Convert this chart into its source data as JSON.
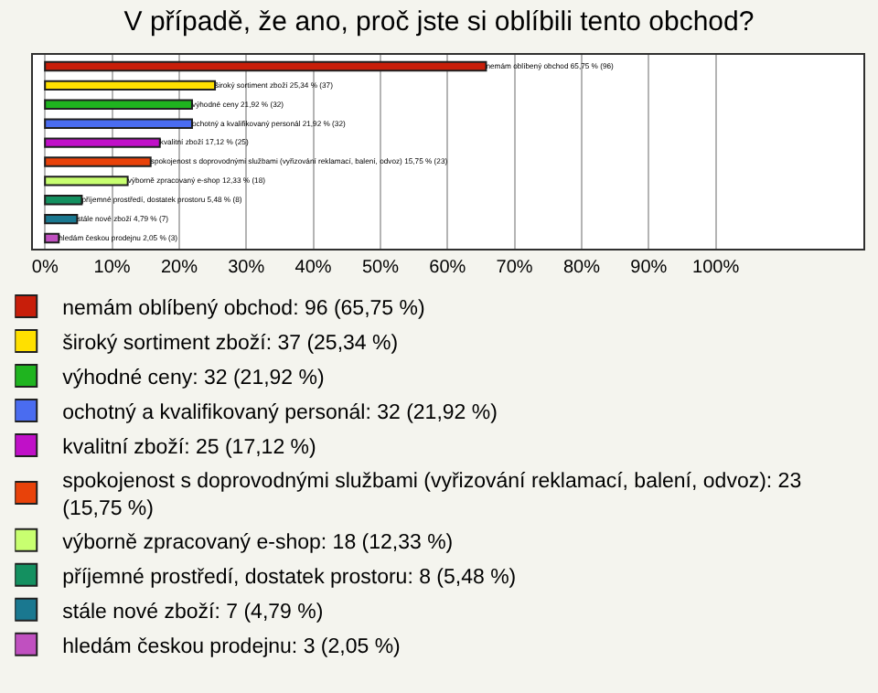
{
  "chart_data": {
    "type": "bar",
    "orientation": "horizontal",
    "title": "V případě, že ano, proč jste si oblíbili tento obchod?",
    "categories": [
      "nemám oblíbený obchod",
      "široký sortiment zboží",
      "výhodné ceny",
      "ochotný a kvalifikovaný personál",
      "kvalitní zboží",
      "spokojenost s doprovodnými službami (vyřizování reklamací, balení, odvoz)",
      "výborně zpracovaný e-shop",
      "příjemné prostředí, dostatek prostoru",
      "stále nové zboží",
      "hledám českou prodejnu"
    ],
    "series": [
      {
        "name": "nemám oblíbený obchod: 96 (65,75 %)",
        "color": "#c81e0a",
        "values": [
          65.75,
          null,
          null,
          null,
          null,
          null,
          null,
          null,
          null,
          null
        ],
        "value_labels": [
          "65,75 % (96)",
          null,
          null,
          null,
          null,
          null,
          null,
          null,
          null,
          null
        ]
      },
      {
        "name": "široký sortiment zboží: 37 (25,34 %)",
        "color": "#ffe000",
        "values": [
          null,
          25.34,
          null,
          null,
          null,
          null,
          null,
          null,
          null,
          null
        ],
        "value_labels": [
          null,
          "25,34 % (37)",
          null,
          null,
          null,
          null,
          null,
          null,
          null,
          null
        ]
      },
      {
        "name": "výhodné ceny: 32 (21,92 %)",
        "color": "#1fb41f",
        "values": [
          null,
          null,
          21.92,
          null,
          null,
          null,
          null,
          null,
          null,
          null
        ],
        "value_labels": [
          null,
          null,
          "21,92 % (32)",
          null,
          null,
          null,
          null,
          null,
          null,
          null
        ]
      },
      {
        "name": "ochotný a kvalifikovaný personál: 32 (21,92 %)",
        "color": "#4a6cf0",
        "values": [
          null,
          null,
          null,
          21.92,
          null,
          null,
          null,
          null,
          null,
          null
        ],
        "value_labels": [
          null,
          null,
          null,
          "21,92 % (32)",
          null,
          null,
          null,
          null,
          null,
          null
        ]
      },
      {
        "name": "kvalitní zboží: 25 (17,12 %)",
        "color": "#c010c8",
        "values": [
          null,
          null,
          null,
          null,
          17.12,
          null,
          null,
          null,
          null,
          null
        ],
        "value_labels": [
          null,
          null,
          null,
          null,
          "17,12 % (25)",
          null,
          null,
          null,
          null,
          null
        ]
      },
      {
        "name": "spokojenost s doprovodnými službami (vyřizování reklamací, balení, odvoz): 23 (15,75 %)",
        "color": "#e8420a",
        "values": [
          null,
          null,
          null,
          null,
          null,
          15.75,
          null,
          null,
          null,
          null
        ],
        "value_labels": [
          null,
          null,
          null,
          null,
          null,
          "15,75 % (23)",
          null,
          null,
          null,
          null
        ]
      },
      {
        "name": "výborně zpracovaný e-shop: 18 (12,33 %)",
        "color": "#c8ff70",
        "values": [
          null,
          null,
          null,
          null,
          null,
          null,
          12.33,
          null,
          null,
          null
        ],
        "value_labels": [
          null,
          null,
          null,
          null,
          null,
          null,
          "12,33 % (18)",
          null,
          null,
          null
        ]
      },
      {
        "name": "příjemné prostředí, dostatek prostoru: 8 (5,48 %)",
        "color": "#149060",
        "values": [
          null,
          null,
          null,
          null,
          null,
          null,
          null,
          5.48,
          null,
          null
        ],
        "value_labels": [
          null,
          null,
          null,
          null,
          null,
          null,
          null,
          "5,48 % (8)",
          null,
          null
        ]
      },
      {
        "name": "stále nové zboží: 7 (4,79 %)",
        "color": "#1a7890",
        "values": [
          null,
          null,
          null,
          null,
          null,
          null,
          null,
          null,
          4.79,
          null
        ],
        "value_labels": [
          null,
          null,
          null,
          null,
          null,
          null,
          null,
          null,
          "4,79 % (7)",
          null
        ]
      },
      {
        "name": "hledám českou prodejnu: 3 (2,05 %)",
        "color": "#c050c0",
        "values": [
          null,
          null,
          null,
          null,
          null,
          null,
          null,
          null,
          null,
          2.05
        ],
        "value_labels": [
          null,
          null,
          null,
          null,
          null,
          null,
          null,
          null,
          null,
          "2,05 % (3)"
        ]
      }
    ],
    "xlim": [
      -1.8,
      122
    ],
    "xticks": [
      {
        "value": 0,
        "label": "0%"
      },
      {
        "value": 10,
        "label": "10%"
      },
      {
        "value": 20,
        "label": "20%"
      },
      {
        "value": 30,
        "label": "30%"
      },
      {
        "value": 40,
        "label": "40%"
      },
      {
        "value": 50,
        "label": "50%"
      },
      {
        "value": 60,
        "label": "60%"
      },
      {
        "value": 70,
        "label": "70%"
      },
      {
        "value": 80,
        "label": "80%"
      },
      {
        "value": 90,
        "label": "90%"
      },
      {
        "value": 100,
        "label": "100%"
      }
    ],
    "grid": "x",
    "tick_labels": "x",
    "legend": "bottom"
  }
}
